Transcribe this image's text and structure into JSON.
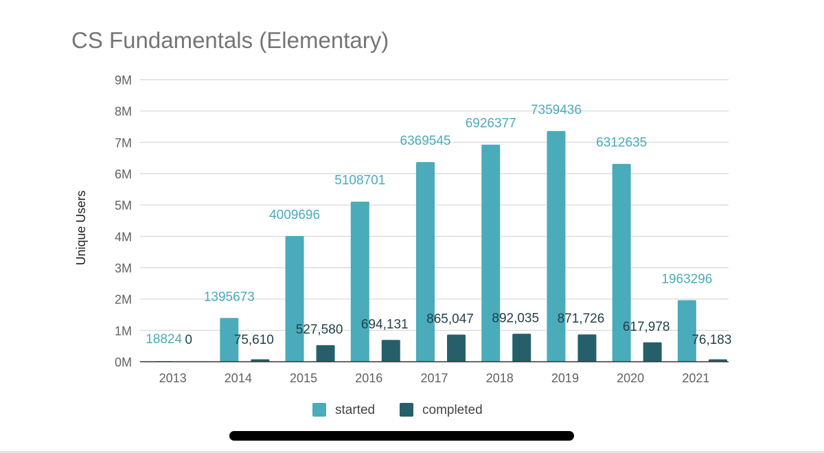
{
  "chart_data": {
    "type": "bar",
    "title": "CS Fundamentals (Elementary)",
    "xlabel": "",
    "ylabel": "Unique Users",
    "categories": [
      "2013",
      "2014",
      "2015",
      "2016",
      "2017",
      "2018",
      "2019",
      "2020",
      "2021"
    ],
    "ylim": [
      0,
      9000000
    ],
    "yticks": [
      {
        "value": 0,
        "label": "0M"
      },
      {
        "value": 1000000,
        "label": "1M"
      },
      {
        "value": 2000000,
        "label": "2M"
      },
      {
        "value": 3000000,
        "label": "3M"
      },
      {
        "value": 4000000,
        "label": "4M"
      },
      {
        "value": 5000000,
        "label": "5M"
      },
      {
        "value": 6000000,
        "label": "6M"
      },
      {
        "value": 7000000,
        "label": "7M"
      },
      {
        "value": 8000000,
        "label": "8M"
      },
      {
        "value": 9000000,
        "label": "9M"
      }
    ],
    "grid": true,
    "legend_position": "bottom",
    "series": [
      {
        "name": "started",
        "color": "#4aabbb",
        "values": [
          18824,
          1395673,
          4009696,
          5108701,
          6369545,
          6926377,
          7359436,
          6312635,
          1963296
        ],
        "labels": [
          "18824",
          "1395673",
          "4009696",
          "5108701",
          "6369545",
          "6926377",
          "7359436",
          "6312635",
          "1963296"
        ]
      },
      {
        "name": "completed",
        "color": "#265f6a",
        "values": [
          0,
          75610,
          527580,
          694131,
          865047,
          892035,
          871726,
          617978,
          76183
        ],
        "labels": [
          "0",
          "75,610",
          "527,580",
          "694,131",
          "865,047",
          "892,035",
          "871,726",
          "617,978",
          "76,183"
        ]
      }
    ]
  }
}
